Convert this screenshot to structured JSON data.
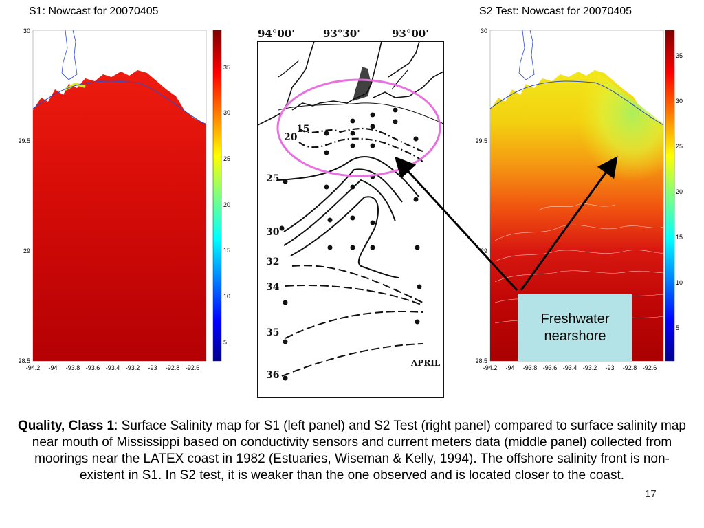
{
  "left_panel": {
    "title": "S1: Nowcast for 20070405",
    "y_ticks": [
      "30",
      "29.5",
      "29",
      "28.5"
    ],
    "x_ticks": [
      "-94.2",
      "-94",
      "-93.8",
      "-93.6",
      "-93.4",
      "-93.2",
      "-93",
      "-92.8",
      "-92.6"
    ],
    "colorbar_ticks": [
      "35",
      "30",
      "25",
      "20",
      "15",
      "10",
      "5"
    ]
  },
  "middle_panel": {
    "top_labels": [
      "94°00'",
      "93°30'",
      "93°00'"
    ],
    "contour_labels": [
      "15",
      "20",
      "25",
      "30",
      "32",
      "34",
      "35",
      "36"
    ],
    "month_label": "APRIL"
  },
  "right_panel": {
    "title": "S2 Test: Nowcast for 20070405",
    "y_ticks": [
      "30",
      "29.5",
      "29",
      "28.5"
    ],
    "x_ticks": [
      "-94.2",
      "-94",
      "-93.8",
      "-93.6",
      "-93.4",
      "-93.2",
      "-93",
      "-92.8",
      "-92.6"
    ],
    "colorbar_ticks": [
      "35",
      "30",
      "25",
      "20",
      "15",
      "10",
      "5"
    ]
  },
  "annotation": {
    "line1": "Freshwater",
    "line2": "nearshore"
  },
  "caption": {
    "bold": "Quality, Class 1",
    "text": ":  Surface Salinity map for S1 (left panel)  and S2 Test (right panel) compared to surface salinity map near mouth of  Mississippi based on conductivity sensors and current meters data (middle panel) collected from moorings near the LATEX coast in 1982 (Estuaries, Wiseman & Kelly, 1994). The offshore salinity front is non-existent in S1. In S2 test, it is weaker than the one observed and is located closer to the coast."
  },
  "slide_number": "17",
  "colors": {
    "ellipse": "#e870e0",
    "arrow": "#000000",
    "box": "#b3e3e6"
  }
}
